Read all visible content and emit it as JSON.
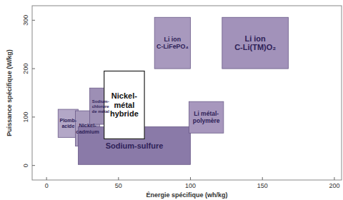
{
  "chart_data": {
    "type": "rect",
    "x_label": "Énergie spécifique (wh/kg)",
    "y_label": "Puissance spécifique (W/kg)",
    "xlim": [
      -10,
      205
    ],
    "ylim": [
      -30,
      330
    ],
    "xticks": [
      0,
      50,
      100,
      150,
      200
    ],
    "yticks": [
      0,
      100,
      200,
      300
    ],
    "grid": false,
    "boxes": [
      {
        "name": "Plomb-\nacide",
        "color": "#b3a7c7",
        "x_range": [
          8,
          22
        ],
        "y_range": [
          58,
          116
        ]
      },
      {
        "name": "Nickel-\ncadmium",
        "color": "#a89bbd",
        "x_range": [
          20,
          37
        ],
        "y_range": [
          40,
          113
        ]
      },
      {
        "name": "Sodium-sulfure",
        "color": "#8a7aa8",
        "x_range": [
          22,
          100
        ],
        "y_range": [
          2,
          80
        ]
      },
      {
        "name": "Sodium-\nchlorure\nde métal",
        "color": "#9d8fb5",
        "x_range": [
          30,
          45
        ],
        "y_range": [
          85,
          160
        ]
      },
      {
        "name": "Nickel-\nmétal\nhybride",
        "color": "#ffffff",
        "x_range": [
          40,
          68
        ],
        "y_range": [
          55,
          195
        ]
      },
      {
        "name": "Li métal-\npolymère",
        "color": "#a797bd",
        "x_range": [
          99,
          123
        ],
        "y_range": [
          67,
          132
        ]
      },
      {
        "name": "Li ion\nC-LiFePO₄",
        "color": "#a899be",
        "x_range": [
          75,
          100
        ],
        "y_range": [
          200,
          306
        ]
      },
      {
        "name": "Li ion\nC-Li(TM)O₂",
        "color": "#a292ba",
        "x_range": [
          122,
          168
        ],
        "y_range": [
          200,
          306
        ]
      }
    ]
  }
}
